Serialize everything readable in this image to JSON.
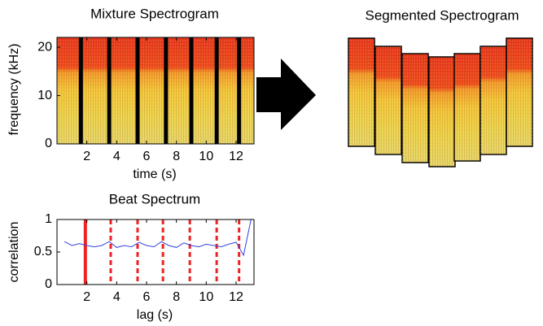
{
  "chart_data": [
    {
      "type": "spectrogram",
      "title": "Mixture Spectrogram",
      "xlabel": "time (s)",
      "ylabel": "frequency (kHz)",
      "xlim": [
        0,
        13.2
      ],
      "ylim": [
        0,
        22.05
      ],
      "xticks": [
        2,
        4,
        6,
        8,
        10,
        12
      ],
      "yticks": [
        0,
        10,
        20
      ],
      "boundaries": [
        1.6,
        3.5,
        5.4,
        7.3,
        9.0,
        10.7,
        12.2
      ],
      "boundary_color": "#000000"
    },
    {
      "type": "line",
      "title": "Beat Spectrum",
      "xlabel": "lag (s)",
      "ylabel": "correlation",
      "xlim": [
        0,
        13.2
      ],
      "ylim": [
        0,
        1
      ],
      "xticks": [
        2,
        4,
        6,
        8,
        10,
        12
      ],
      "yticks": [
        0,
        0.5,
        1
      ],
      "x": [
        0.5,
        1.0,
        1.5,
        2.0,
        2.5,
        3.0,
        3.5,
        4.0,
        4.5,
        5.0,
        5.5,
        6.0,
        6.5,
        7.0,
        7.5,
        8.0,
        8.5,
        9.0,
        9.5,
        10.0,
        10.5,
        11.0,
        11.5,
        12.0,
        12.5,
        13.0
      ],
      "series": [
        {
          "color": "#3344dd",
          "values": [
            0.66,
            0.6,
            0.63,
            0.6,
            0.58,
            0.6,
            0.66,
            0.57,
            0.6,
            0.58,
            0.65,
            0.6,
            0.58,
            0.66,
            0.6,
            0.57,
            0.64,
            0.6,
            0.58,
            0.62,
            0.6,
            0.58,
            0.62,
            0.65,
            0.45,
            1.0
          ]
        }
      ],
      "markers": {
        "color": "#ee2222",
        "x": [
          1.9,
          3.6,
          5.4,
          7.1,
          8.9,
          10.7,
          12.2
        ],
        "styles": [
          "solid",
          "dashed",
          "dashed",
          "dashed",
          "dashed",
          "dashed",
          "dashed"
        ]
      }
    },
    {
      "type": "segments",
      "title": "Segmented Spectrogram"
    }
  ]
}
